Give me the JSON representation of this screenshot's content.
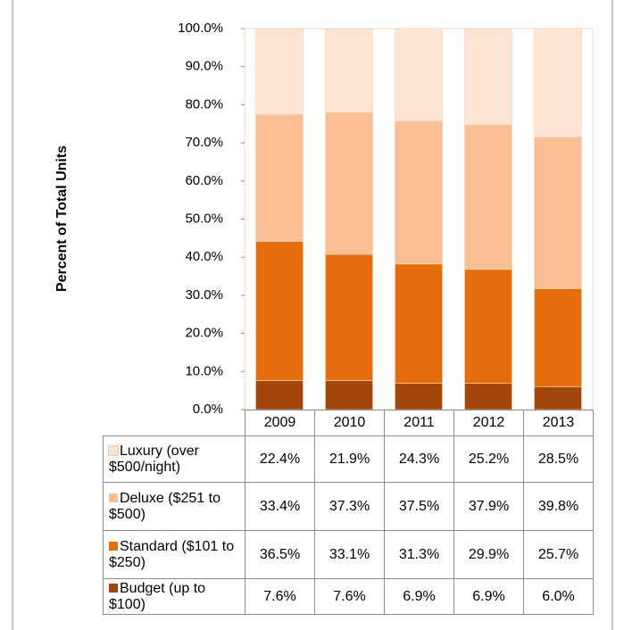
{
  "chart_data": {
    "type": "stacked_bar",
    "y_label": "Percent of Total Units",
    "categories": [
      "2009",
      "2010",
      "2011",
      "2012",
      "2013"
    ],
    "series": [
      {
        "name": "Luxury (over $500/night)",
        "color": "#fde5d5",
        "values": [
          22.4,
          21.9,
          24.3,
          25.2,
          28.5
        ],
        "value_labels": [
          "22.4%",
          "21.9%",
          "24.3%",
          "25.2%",
          "28.5%"
        ]
      },
      {
        "name": "Deluxe ($251 to $500)",
        "color": "#f9be94",
        "values": [
          33.4,
          37.3,
          37.5,
          37.9,
          39.8
        ],
        "value_labels": [
          "33.4%",
          "37.3%",
          "37.5%",
          "37.9%",
          "39.8%"
        ]
      },
      {
        "name": "Standard ($101 to $250)",
        "color": "#e46c0a",
        "values": [
          36.5,
          33.1,
          31.3,
          29.9,
          25.7
        ],
        "value_labels": [
          "36.5%",
          "33.1%",
          "31.3%",
          "29.9%",
          "25.7%"
        ]
      },
      {
        "name": "Budget (up to $100)",
        "color": "#a0460a",
        "values": [
          7.6,
          7.6,
          6.9,
          6.9,
          6.0
        ],
        "value_labels": [
          "7.6%",
          "7.6%",
          "6.9%",
          "6.9%",
          "6.0%"
        ]
      }
    ],
    "ylim": [
      0,
      100
    ],
    "yticks": [
      {
        "value": 0,
        "label": "0.0%"
      },
      {
        "value": 10,
        "label": "10.0%"
      },
      {
        "value": 20,
        "label": "20.0%"
      },
      {
        "value": 30,
        "label": "30.0%"
      },
      {
        "value": 40,
        "label": "40.0%"
      },
      {
        "value": 50,
        "label": "50.0%"
      },
      {
        "value": 60,
        "label": "60.0%"
      },
      {
        "value": 70,
        "label": "70.0%"
      },
      {
        "value": 80,
        "label": "80.0%"
      },
      {
        "value": 90,
        "label": "90.0%"
      },
      {
        "value": 100,
        "label": "100.0%"
      }
    ]
  }
}
